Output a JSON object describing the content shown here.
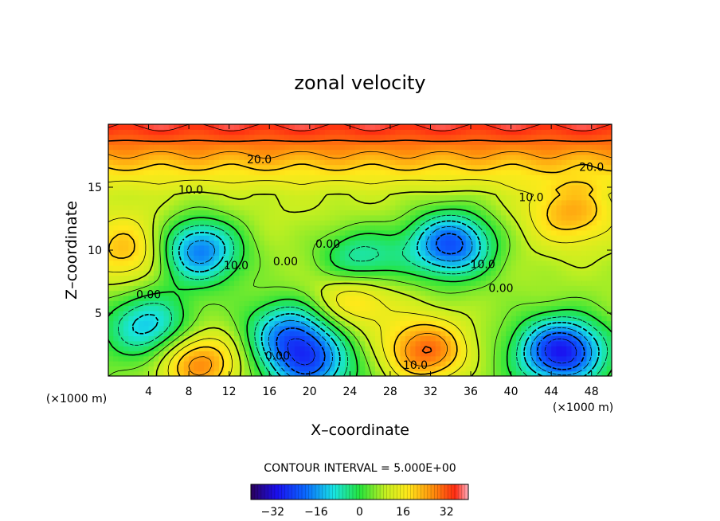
{
  "chart_data": {
    "type": "heatmap",
    "subtype": "filled-contour",
    "title": "zonal velocity",
    "xlabel": "X–coordinate",
    "ylabel": "Z–coordinate",
    "x_unit_note": "(×1000 m)",
    "y_unit_note": "(×1000 m)",
    "xlim": [
      0,
      50
    ],
    "ylim": [
      0,
      20
    ],
    "x_ticks": [
      4,
      8,
      12,
      16,
      20,
      24,
      28,
      32,
      36,
      40,
      44,
      48
    ],
    "y_ticks": [
      5,
      10,
      15
    ],
    "contour_interval_text": "CONTOUR INTERVAL = 5.000E+00",
    "colorbar": {
      "min": -40,
      "max": 40,
      "ticks": [
        -32,
        -16,
        0,
        16,
        32
      ],
      "tick_labels": [
        "−32",
        "−16",
        "0",
        "16",
        "32"
      ],
      "colormap": "rainbow (purple-blue-cyan-green-yellow-orange-red)"
    },
    "contour_labels": [
      {
        "text": "20.0",
        "x": 15,
        "z": 17.2
      },
      {
        "text": "20.0",
        "x": 48,
        "z": 16.6
      },
      {
        "text": "10.0",
        "x": 8.2,
        "z": 14.8
      },
      {
        "text": "10.0",
        "x": 42,
        "z": 14.2
      },
      {
        "text": "10.0",
        "x": 12.7,
        "z": 8.8
      },
      {
        "text": "10.0",
        "x": 37.2,
        "z": 8.9
      },
      {
        "text": "10.0",
        "x": 30.5,
        "z": 0.9
      },
      {
        "text": "0.00",
        "x": 17.6,
        "z": 9.1
      },
      {
        "text": "0.00",
        "x": 21.8,
        "z": 10.5
      },
      {
        "text": "0.00",
        "x": 4.0,
        "z": 6.5
      },
      {
        "text": "0.00",
        "x": 39.0,
        "z": 7.0
      },
      {
        "text": "0.00",
        "x": 16.8,
        "z": 1.6
      }
    ],
    "features": [
      {
        "x": 9,
        "z": 1,
        "value": 30
      },
      {
        "x": 20,
        "z": 1,
        "value": -16
      },
      {
        "x": 31.5,
        "z": 2,
        "value": 32
      },
      {
        "x": 24.5,
        "z": 6.5,
        "value": 25
      },
      {
        "x": 45,
        "z": 2,
        "value": -28
      },
      {
        "x": 9,
        "z": 10,
        "value": -20
      },
      {
        "x": 34,
        "z": 10.5,
        "value": -24
      },
      {
        "x": 25,
        "z": 9,
        "value": -12
      },
      {
        "x": 46,
        "z": 13,
        "value": 22
      },
      {
        "x": 2,
        "z": 10,
        "value": 22
      },
      {
        "x": 4,
        "z": 4,
        "value": -12
      },
      {
        "x": 18,
        "z": 3.5,
        "value": -14
      }
    ]
  }
}
